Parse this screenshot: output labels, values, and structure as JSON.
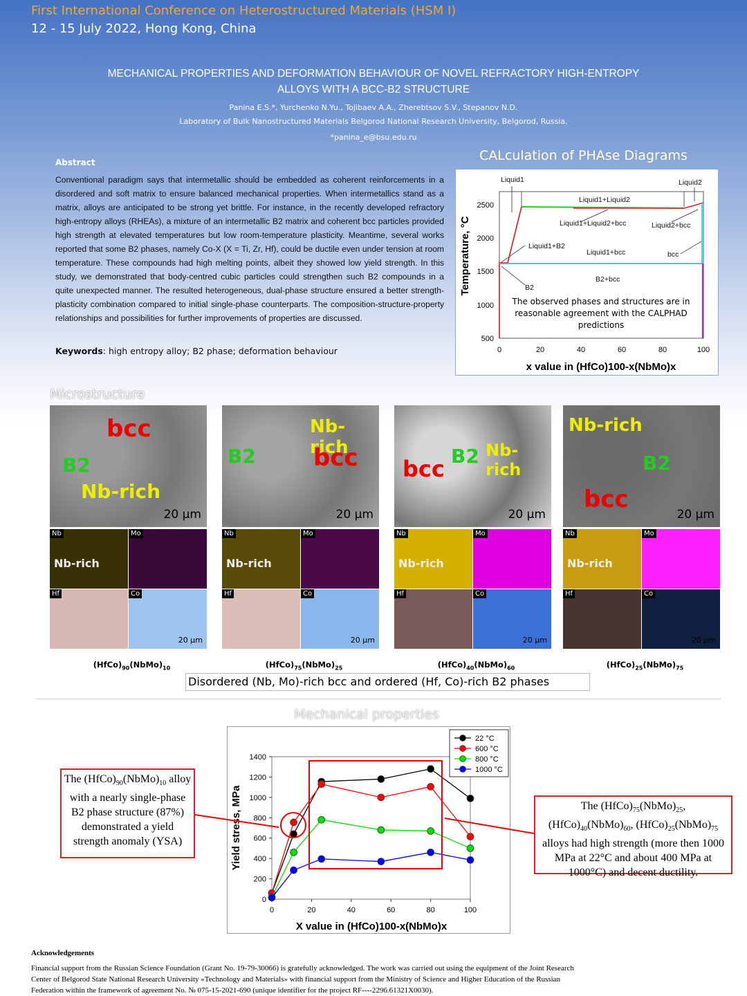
{
  "header": {
    "conference": "First International Conference on Heterostructured Materials (HSM I)",
    "dates": "12 - 15 July 2022, Hong Kong, China",
    "title_line1": "MECHANICAL PROPERTIES AND DEFORMATION BEHAVIOUR OF NOVEL REFRACTORY HIGH-ENTROPY",
    "title_line2": "ALLOYS WITH A BCC-B2 STRUCTURE",
    "authors": "Panina E.S.*, Yurchenko N.Yu., Tojibaev A.A., Zherebtsov S.V., Stepanov N.D.",
    "affiliation": "Laboratory of Bulk Nanostructured Materials Belgorod National Research University, Belgorod, Russia.",
    "email": "*panina_e@bsu.edu.ru"
  },
  "abstract": {
    "heading": "Abstract",
    "text": "Conventional paradigm says that intermetallic should be embedded as coherent reinforcements in a disordered and soft matrix to ensure balanced mechanical properties. When intermetallics stand as a matrix, alloys are anticipated to be strong yet brittle. For instance, in the recently developed refractory high-entropy alloys (RHEAs), a mixture of an intermetallic B2 matrix and coherent bcc particles provided high strength at elevated temperatures but low room-temperature plasticity. Meantime, several works reported that some B2 phases, namely Co-X (X = Ti, Zr, Hf), could be ductile even under tension at room temperature. These compounds had high melting points, albeit they showed low yield strength. In this study, we demonstrated that body-centred cubic particles could strengthen such B2 compounds in a quite unexpected manner. The resulted heterogeneous, dual-phase structure ensured a better strength-plasticity combination compared to initial single-phase counterparts. The composition-structure-property relationships and possibilities for further improvements of properties are discussed.",
    "keywords_label": "Keywords",
    "keywords": ": high entropy alloy; B2 phase; deformation behaviour"
  },
  "calphad": {
    "heading": "CALculation of PHAse Diagrams",
    "ylabel": "Temperature, °C",
    "xlabel": "x value in (HfCo)100-x(NbMo)x",
    "yticks": [
      "500",
      "1000",
      "1500",
      "2000",
      "2500"
    ],
    "xticks": [
      "0",
      "20",
      "40",
      "60",
      "80",
      "100"
    ],
    "labels": {
      "liquid1": "Liquid1",
      "liquid2": "Liquid2",
      "l1l2": "Liquid1+Liquid2",
      "l1l2bcc": "Liquid1+Liquid2+bcc",
      "l2bcc": "Liquid2+bcc",
      "l1b2": "Liquid1+B2",
      "l1bcc": "Liquid1+bcc",
      "bcc": "bcc",
      "b2": "B2",
      "b2bcc": "B2+bcc"
    },
    "note": "The observed phases and structures are in reasonable agreement with the CALPHAD predictions"
  },
  "microstructure": {
    "heading": "Microstructure",
    "scale": "20 µm",
    "map_tags": [
      "Nb",
      "Mo",
      "Hf",
      "Co"
    ],
    "samples": [
      {
        "caption_a": "(HfCo)",
        "sub_a": "90",
        "caption_b": "(NbMo)",
        "sub_b": "10",
        "labels": [
          "bcc",
          "B2",
          "Nb-rich"
        ],
        "map_label": "Nb-rich"
      },
      {
        "caption_a": "(HfCo)",
        "sub_a": "75",
        "caption_b": "(NbMo)",
        "sub_b": "25",
        "labels": [
          "Nb-rich",
          "B2",
          "bcc"
        ],
        "map_label": "Nb-rich"
      },
      {
        "caption_a": "(HfCo)",
        "sub_a": "40",
        "caption_b": "(NbMo)",
        "sub_b": "60",
        "labels": [
          "bcc",
          "B2",
          "Nb-rich"
        ],
        "map_label": "Nb-rich"
      },
      {
        "caption_a": "(HfCo)",
        "sub_a": "25",
        "caption_b": "(NbMo)",
        "sub_b": "75",
        "labels": [
          "Nb-rich",
          "B2",
          "bcc"
        ],
        "map_label": "Nb-rich"
      }
    ],
    "phase_caption": "Disordered (Nb, Mo)-rich bcc and ordered (Hf, Co)-rich B2 phases"
  },
  "mechanical": {
    "heading": "Mechanical properties",
    "note_left": {
      "a": "The (HfCo)",
      "s1": "90",
      "b": "(NbMo)",
      "s2": "10",
      "c": " alloy with a nearly single-phase B2 phase structure (87%) demonstrated a yield strength anomaly (YSA)"
    },
    "note_right": {
      "a": "The (HfCo)",
      "s1": "75",
      "b": "(NbMo)",
      "s2": "25",
      "c": ", (HfCo)",
      "s3": "40",
      "d": "(NbMo)",
      "s4": "60",
      "e": ", (HfCo)",
      "s5": "25",
      "f": "(NbMo)",
      "s6": "75",
      "g": " alloys had high strength (more then 1000 MPa at 22°C and about 400 MPa at 1000°C) and decent ductility."
    }
  },
  "chart_data": {
    "type": "line",
    "title": "",
    "xlabel": "X value in (HfCo)100-x(NbMo)x",
    "ylabel": "Yield stress, MPa",
    "x": [
      0,
      11,
      25,
      55,
      80,
      100
    ],
    "xlim": [
      0,
      100
    ],
    "ylim": [
      0,
      1400
    ],
    "xticks": [
      0,
      20,
      40,
      60,
      80,
      100
    ],
    "yticks": [
      0,
      200,
      400,
      600,
      800,
      1000,
      1200,
      1400
    ],
    "legend_position": "top-right",
    "series": [
      {
        "name": "22 °C",
        "color": "#000000",
        "values": [
          60,
          640,
          1155,
          1180,
          1280,
          990
        ]
      },
      {
        "name": "600 °C",
        "color": "#ff0000",
        "values": [
          60,
          755,
          1130,
          1000,
          1105,
          615
        ]
      },
      {
        "name": "800 °C",
        "color": "#00e000",
        "values": [
          20,
          460,
          780,
          680,
          670,
          500
        ]
      },
      {
        "name": "1000 °C",
        "color": "#0000ff",
        "values": [
          15,
          285,
          395,
          370,
          460,
          385
        ]
      }
    ]
  },
  "acknowledgements": {
    "heading": "Acknowledgements",
    "text": "Financial support from the Russian Science Foundation (Grant No. 19-79-30066) is gratefully acknowledged. The work was carried out using the equipment of the Joint Research Center of Belgorod State National Research University «Technology and Materials» with financial support from the Ministry of Science and Higher Education of the Russian Federation within the framework of agreement No. № 075-15-2021-690 (unique identifier for the project RF----2296.61321X0030)."
  }
}
